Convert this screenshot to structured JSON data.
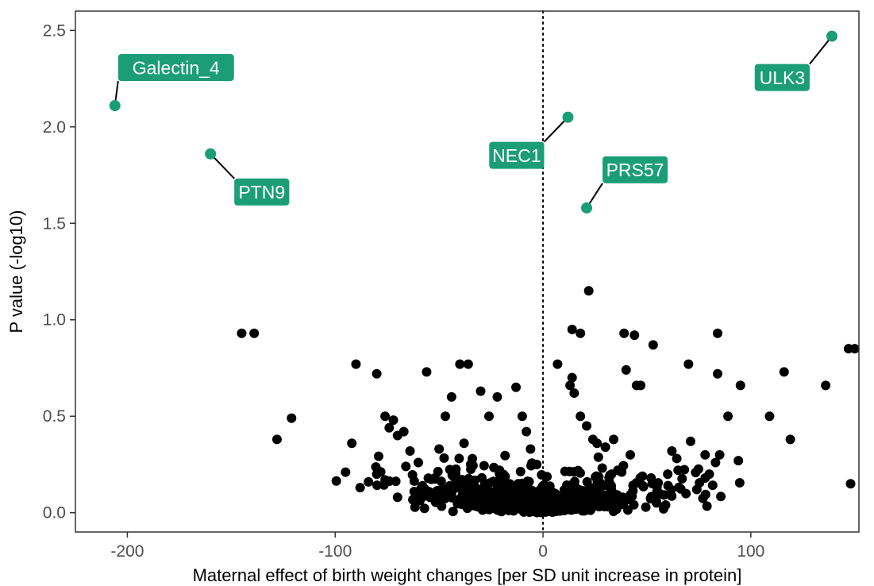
{
  "chart_data": {
    "type": "scatter",
    "title": "",
    "xlabel": "Maternal effect of birth weight changes [per SD unit increase in protein]",
    "ylabel": "P value (-log10)",
    "xlim": [
      -225,
      152
    ],
    "ylim": [
      -0.1,
      2.6
    ],
    "x_ticks": [
      -200,
      -100,
      0,
      100
    ],
    "x_tick_labels": [
      "-200",
      "-100",
      "0",
      "100"
    ],
    "y_ticks": [
      0.0,
      0.5,
      1.0,
      1.5,
      2.0,
      2.5
    ],
    "y_tick_labels": [
      "0.0",
      "0.5",
      "1.0",
      "1.5",
      "2.0",
      "2.5"
    ],
    "grid": false,
    "reference_line": {
      "x": 0,
      "style": "dotted"
    },
    "colors": {
      "point": "#000000",
      "highlight": "#1b9e77",
      "label_bg": "#1b9e77",
      "label_text": "#ffffff",
      "frame": "#333333"
    },
    "highlighted": [
      {
        "label": "Galectin_4",
        "x": -206,
        "y": 2.11
      },
      {
        "label": "PTN9",
        "x": -160,
        "y": 1.86
      },
      {
        "label": "NEC1",
        "x": 12,
        "y": 2.05
      },
      {
        "label": "PRS57",
        "x": 21,
        "y": 1.58
      },
      {
        "label": "ULK3",
        "x": 139,
        "y": 2.47
      }
    ],
    "points": [
      [
        -145,
        0.93
      ],
      [
        -139,
        0.93
      ],
      [
        -121,
        0.49
      ],
      [
        -128,
        0.38
      ],
      [
        -90,
        0.77
      ],
      [
        -92,
        0.36
      ],
      [
        -95,
        0.21
      ],
      [
        -88,
        0.13
      ],
      [
        -84,
        0.16
      ],
      [
        -80,
        0.72
      ],
      [
        -80,
        0.2
      ],
      [
        -76,
        0.5
      ],
      [
        -74,
        0.44
      ],
      [
        -72,
        0.48
      ],
      [
        -70,
        0.4
      ],
      [
        -67,
        0.42
      ],
      [
        -64,
        0.32
      ],
      [
        -60,
        0.26
      ],
      [
        -56,
        0.73
      ],
      [
        -47,
        0.5
      ],
      [
        -44,
        0.6
      ],
      [
        -40,
        0.77
      ],
      [
        -36,
        0.77
      ],
      [
        -30,
        0.63
      ],
      [
        -26,
        0.5
      ],
      [
        -22,
        0.6
      ],
      [
        -13,
        0.65
      ],
      [
        -10,
        0.5
      ],
      [
        -8,
        0.42
      ],
      [
        -6,
        0.33
      ],
      [
        -3,
        0.25
      ],
      [
        7,
        0.77
      ],
      [
        14,
        0.95
      ],
      [
        18,
        0.93
      ],
      [
        22,
        1.15
      ],
      [
        14,
        0.7
      ],
      [
        13,
        0.66
      ],
      [
        15,
        0.62
      ],
      [
        18,
        0.5
      ],
      [
        21,
        0.45
      ],
      [
        24,
        0.38
      ],
      [
        26,
        0.36
      ],
      [
        30,
        0.34
      ],
      [
        34,
        0.38
      ],
      [
        39,
        0.93
      ],
      [
        44,
        0.92
      ],
      [
        40,
        0.74
      ],
      [
        45,
        0.66
      ],
      [
        47,
        0.66
      ],
      [
        53,
        0.87
      ],
      [
        62,
        0.32
      ],
      [
        70,
        0.77
      ],
      [
        71,
        0.37
      ],
      [
        78,
        0.3
      ],
      [
        80,
        0.2
      ],
      [
        84,
        0.93
      ],
      [
        84,
        0.72
      ],
      [
        89,
        0.5
      ],
      [
        85,
        0.3
      ],
      [
        83,
        0.26
      ],
      [
        94,
        0.27
      ],
      [
        95,
        0.66
      ],
      [
        109,
        0.5
      ],
      [
        116,
        0.73
      ],
      [
        119,
        0.38
      ],
      [
        136,
        0.66
      ],
      [
        147,
        0.85
      ],
      [
        150,
        0.85
      ],
      [
        148,
        0.15
      ],
      [
        58,
        0.02
      ],
      [
        65,
        0.22
      ],
      [
        56,
        0.1
      ],
      [
        52,
        0.18
      ],
      [
        48,
        0.14
      ],
      [
        -52,
        0.18
      ],
      [
        -58,
        0.14
      ],
      [
        -66,
        0.24
      ],
      [
        -70,
        0.08
      ],
      [
        -76,
        0.17
      ],
      [
        -62,
        0.11
      ],
      [
        -50,
        0.33
      ],
      [
        -38,
        0.36
      ],
      [
        -42,
        0.2
      ],
      [
        -34,
        0.28
      ],
      [
        -28,
        0.15
      ],
      [
        36,
        0.22
      ],
      [
        28,
        0.15
      ],
      [
        42,
        0.3
      ],
      [
        60,
        0.2
      ],
      [
        74,
        0.12
      ],
      [
        78,
        0.18
      ]
    ]
  }
}
